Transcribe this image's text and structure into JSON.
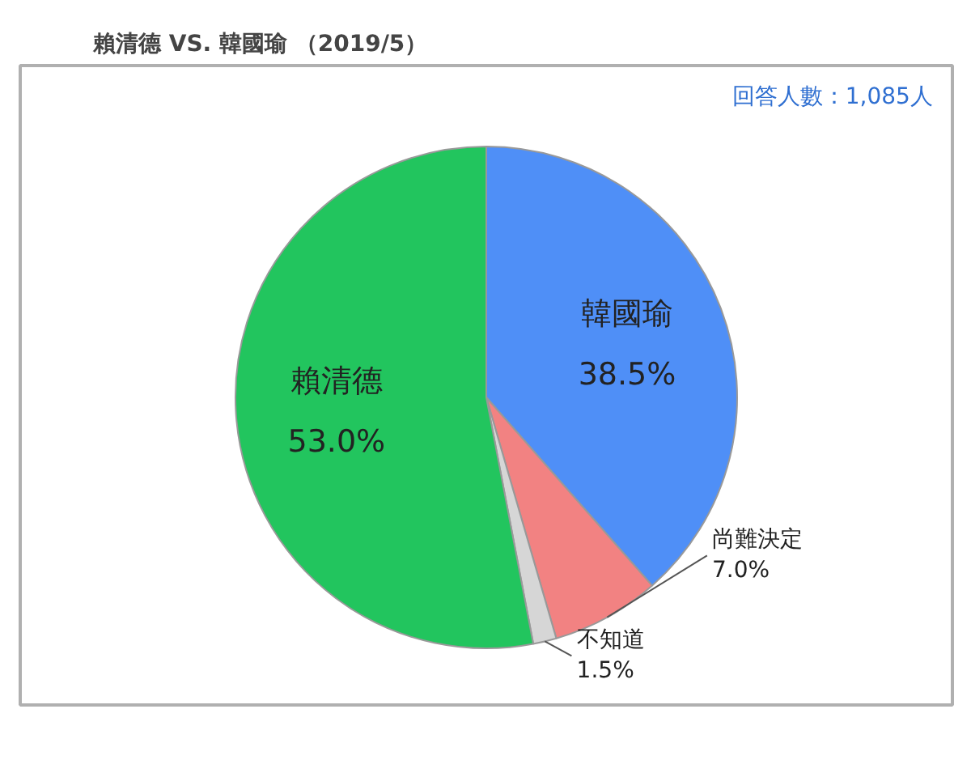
{
  "chart_data": {
    "type": "pie",
    "title": "賴清德 VS. 韓國瑜 （2019/5）",
    "annotations": [
      "回答人數：1,085人"
    ],
    "categories": [
      "韓國瑜",
      "尚難決定",
      "不知道",
      "賴清德"
    ],
    "values": [
      38.5,
      7.0,
      1.5,
      53.0
    ],
    "value_labels": [
      "38.5%",
      "7.0%",
      "1.5%",
      "53.0%"
    ],
    "colors": [
      "#4f8ff7",
      "#f28282",
      "#d6d6d6",
      "#22c55e"
    ]
  }
}
